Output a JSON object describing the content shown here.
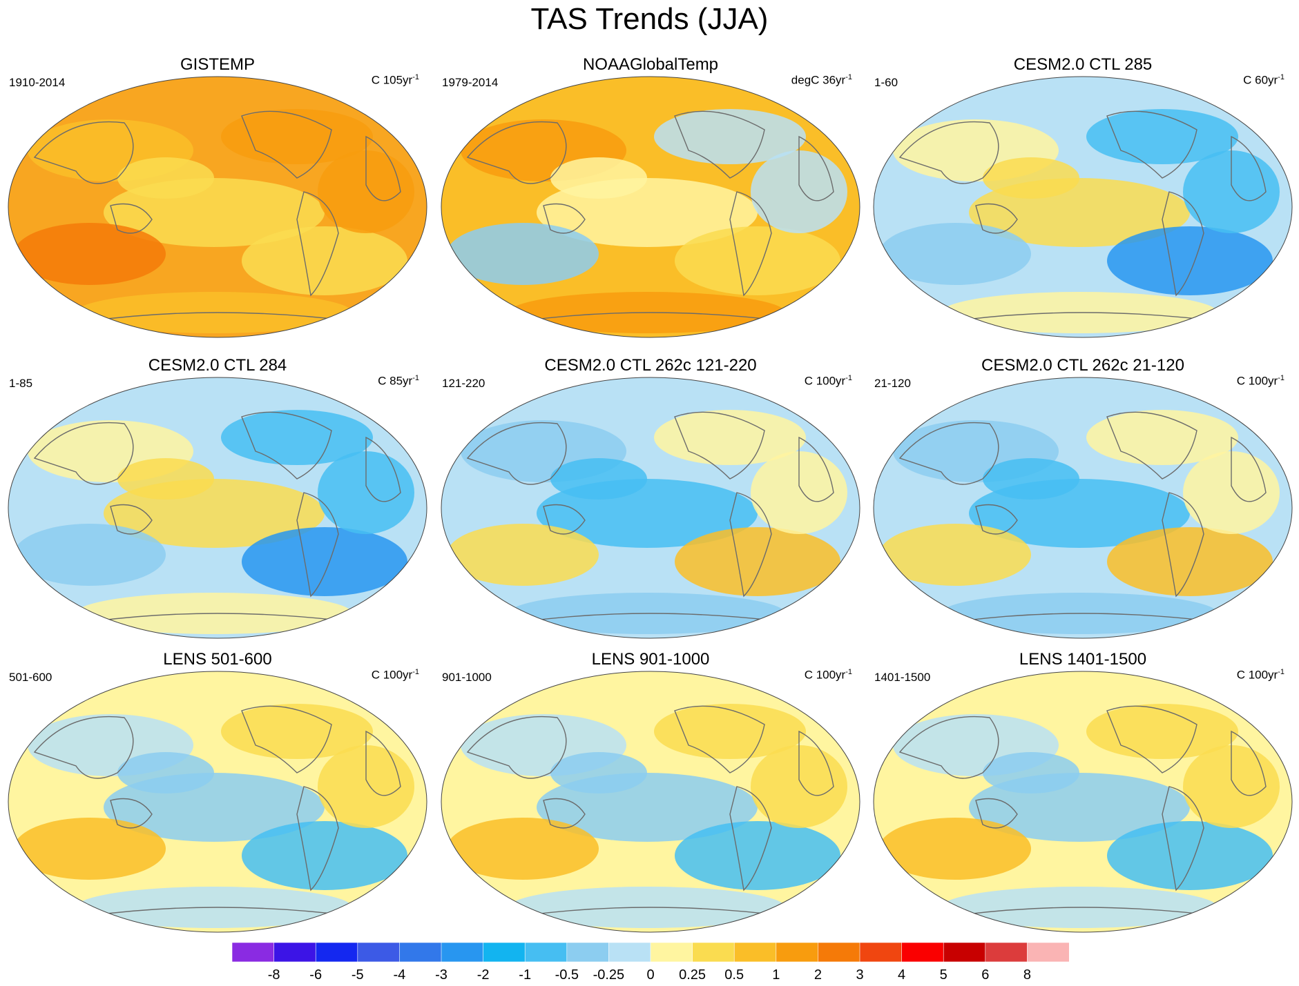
{
  "title": "TAS Trends (JJA)",
  "panels": [
    {
      "title": "GISTEMP",
      "period": "1910-2014",
      "unit_prefix": "C 105yr",
      "unit_exp": "-1",
      "pattern": "warm"
    },
    {
      "title": "NOAAGlobalTemp",
      "period": "1979-2014",
      "unit_prefix": "degC 36yr",
      "unit_exp": "-1",
      "pattern": "noaa"
    },
    {
      "title": "CESM2.0 CTL 285",
      "period": "1-60",
      "unit_prefix": "C 60yr",
      "unit_exp": "-1",
      "pattern": "mixed-cool"
    },
    {
      "title": "CESM2.0 CTL 284",
      "period": "1-85",
      "unit_prefix": "C 85yr",
      "unit_exp": "-1",
      "pattern": "mixed-cool"
    },
    {
      "title": "CESM2.0 CTL 262c 121-220",
      "period": "121-220",
      "unit_prefix": "C 100yr",
      "unit_exp": "-1",
      "pattern": "cool"
    },
    {
      "title": "CESM2.0 CTL 262c 21-120",
      "period": "21-120",
      "unit_prefix": "C 100yr",
      "unit_exp": "-1",
      "pattern": "cool"
    },
    {
      "title": "LENS 501-600",
      "period": "501-600",
      "unit_prefix": "C 100yr",
      "unit_exp": "-1",
      "pattern": "mixed-warm"
    },
    {
      "title": "LENS 901-1000",
      "period": "901-1000",
      "unit_prefix": "C 100yr",
      "unit_exp": "-1",
      "pattern": "mixed-warm"
    },
    {
      "title": "LENS 1401-1500",
      "period": "1401-1500",
      "unit_prefix": "C 100yr",
      "unit_exp": "-1",
      "pattern": "mixed-warm"
    }
  ],
  "colorbar": {
    "labels": [
      "-8",
      "-6",
      "-5",
      "-4",
      "-3",
      "-2",
      "-1",
      "-0.5",
      "-0.25",
      "0",
      "0.25",
      "0.5",
      "1",
      "2",
      "3",
      "4",
      "5",
      "6",
      "8"
    ],
    "colors": [
      "#8a2be2",
      "#3c14e6",
      "#1428f0",
      "#3c5ae6",
      "#3278ea",
      "#2896f0",
      "#12b4f0",
      "#46bef2",
      "#8ccdf0",
      "#b9e1f5",
      "#fff5a0",
      "#fadc50",
      "#fabe28",
      "#f89c0e",
      "#f57a08",
      "#f04610",
      "#fa0000",
      "#c80000",
      "#dc3c3c",
      "#fab4b4"
    ]
  }
}
